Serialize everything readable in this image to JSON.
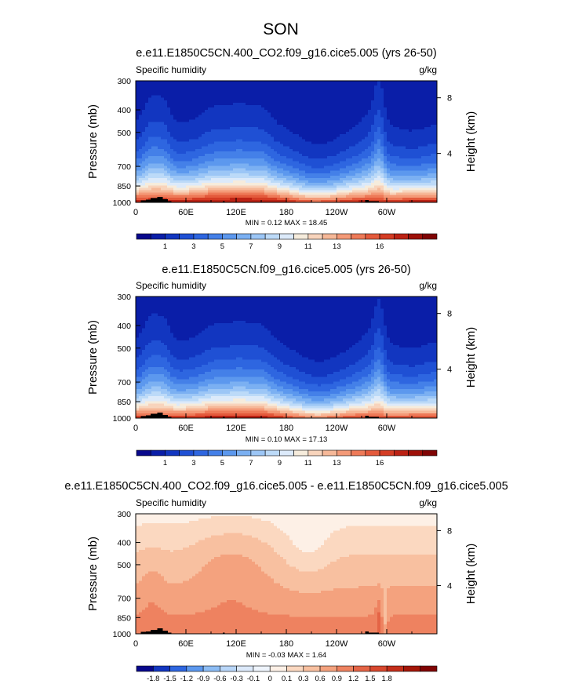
{
  "figure": {
    "season": "SON"
  },
  "palettes": {
    "humidity": [
      "#08088c",
      "#0a1ea8",
      "#1236c0",
      "#1f50d4",
      "#2e66e0",
      "#4480e8",
      "#5c98ee",
      "#7bb0f2",
      "#9cc6f6",
      "#bcdaf8",
      "#dceafa",
      "#f6ecdc",
      "#f8d4bc",
      "#f6b898",
      "#f49a78",
      "#ee7a58",
      "#e45a3c",
      "#d43c24",
      "#bc2214",
      "#9e1008",
      "#800404"
    ],
    "difference": [
      "#08088c",
      "#1236c0",
      "#2e66e0",
      "#5c98ee",
      "#8cbcf4",
      "#b8d6f8",
      "#dce9fa",
      "#eef4fc",
      "#fdf0e6",
      "#fbd8c0",
      "#f8c0a0",
      "#f4a27e",
      "#ee8260",
      "#e46446",
      "#d8482e",
      "#c42e1a",
      "#a41608",
      "#800404"
    ]
  },
  "chart_data": [
    {
      "type": "heatmap",
      "title": "e.e11.E1850C5CN.400_CO2.f09_g16.cice5.005 (yrs 26-50)",
      "left_label": "Specific humidity",
      "units": "g/kg",
      "ylabel": "Pressure (mb)",
      "y2label": "Height (km)",
      "xticks": [
        "0",
        "60E",
        "120E",
        "180",
        "120W",
        "60W"
      ],
      "yticks": [
        "300",
        "400",
        "500",
        "700",
        "850",
        "1000"
      ],
      "y2ticks": [
        "8",
        "4"
      ],
      "stats": "MIN =  0.12  MAX =  18.45",
      "colorbar": {
        "levels": [
          0,
          1,
          2,
          3,
          4,
          5,
          6,
          7,
          8,
          9,
          10,
          11,
          12,
          13,
          14,
          15,
          16,
          17
        ],
        "labels": [
          "1",
          "3",
          "5",
          "7",
          "9",
          "11",
          "13",
          "16"
        ],
        "palette": "humidity"
      },
      "field": "qa"
    },
    {
      "type": "heatmap",
      "title": "e.e11.E1850C5CN.f09_g16.cice5.005 (yrs 26-50)",
      "left_label": "Specific humidity",
      "units": "g/kg",
      "ylabel": "Pressure (mb)",
      "y2label": "Height (km)",
      "xticks": [
        "0",
        "60E",
        "120E",
        "180",
        "120W",
        "60W"
      ],
      "yticks": [
        "300",
        "400",
        "500",
        "700",
        "850",
        "1000"
      ],
      "y2ticks": [
        "8",
        "4"
      ],
      "stats": "MIN =  0.10  MAX =  17.13",
      "colorbar": {
        "levels": [
          0,
          1,
          2,
          3,
          4,
          5,
          6,
          7,
          8,
          9,
          10,
          11,
          12,
          13,
          14,
          15,
          16,
          17
        ],
        "labels": [
          "1",
          "3",
          "5",
          "7",
          "9",
          "11",
          "13",
          "16"
        ],
        "palette": "humidity"
      },
      "field": "qb"
    },
    {
      "type": "heatmap",
      "title": "e.e11.E1850C5CN.400_CO2.f09_g16.cice5.005 - e.e11.E1850C5CN.f09_g16.cice5.005",
      "left_label": "Specific humidity",
      "units": "g/kg",
      "ylabel": "Pressure (mb)",
      "y2label": "Height (km)",
      "xticks": [
        "0",
        "60E",
        "120E",
        "180",
        "120W",
        "60W"
      ],
      "yticks": [
        "300",
        "400",
        "500",
        "700",
        "850",
        "1000"
      ],
      "y2ticks": [
        "8",
        "4"
      ],
      "stats": "MIN = -0.03  MAX =  1.64",
      "colorbar": {
        "levels": [
          -1.8,
          -1.5,
          -1.2,
          -0.9,
          -0.6,
          -0.3,
          -0.1,
          0,
          0.1,
          0.3,
          0.6,
          0.9,
          1.2,
          1.5,
          1.8
        ],
        "labels": [
          "-1.8",
          "-1.5",
          "-1.2",
          "-0.9",
          "-0.6",
          "-0.3",
          "-0.1",
          "0",
          "0.1",
          "0.3",
          "0.6",
          "0.9",
          "1.2",
          "1.5",
          "1.8"
        ],
        "palette": "difference"
      },
      "field": "diff"
    }
  ]
}
